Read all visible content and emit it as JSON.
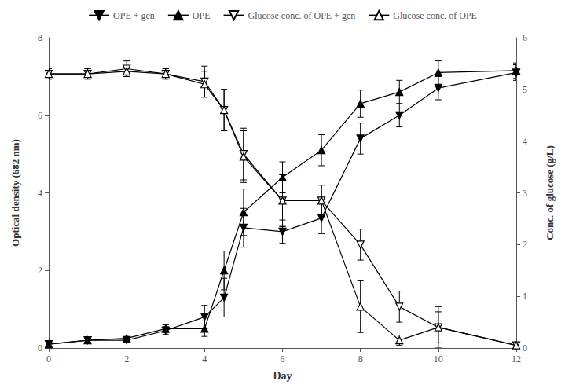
{
  "chart_data": {
    "type": "line",
    "xlabel": "Day",
    "ylabel": "Optical density (682 nm)",
    "y2label": "Conc. of glucose (g/L)",
    "x": [
      0,
      1,
      2,
      3,
      4,
      4.5,
      5,
      6,
      7,
      8,
      9,
      10,
      12
    ],
    "xlim": [
      0,
      12
    ],
    "xticks": [
      0,
      2,
      4,
      6,
      8,
      10,
      12
    ],
    "ylim": [
      0,
      8
    ],
    "yticks": [
      0,
      2,
      4,
      6,
      8
    ],
    "y2lim": [
      0,
      6
    ],
    "y2ticks": [
      0,
      1,
      2,
      3,
      4,
      5,
      6
    ],
    "grid": false,
    "legend": "top",
    "series": [
      {
        "name": "OPE + gen",
        "color": "#000000",
        "marker": "triangle-down",
        "values": [
          0.1,
          0.2,
          0.2,
          0.45,
          0.8,
          1.3,
          3.1,
          3.0,
          3.35,
          5.4,
          6.0,
          6.7,
          7.1
        ],
        "yerr": [
          0.05,
          0.05,
          0.05,
          0.1,
          0.3,
          0.5,
          0.5,
          0.3,
          0.4,
          0.4,
          0.3,
          0.3,
          0.2
        ]
      },
      {
        "name": "OPE",
        "color": "#000000",
        "marker": "triangle-up",
        "values": [
          0.1,
          0.2,
          0.25,
          0.5,
          0.5,
          2.0,
          3.5,
          4.4,
          5.1,
          6.3,
          6.6,
          7.1,
          7.15
        ],
        "yerr": [
          0.05,
          0.05,
          0.05,
          0.1,
          0.2,
          0.5,
          0.6,
          0.4,
          0.4,
          0.35,
          0.3,
          0.3,
          0.2
        ]
      },
      {
        "name": "Glucose conc. of OPE + gen",
        "color": "#000000",
        "marker": "open-triangle-down",
        "axis": "y2",
        "values": [
          5.3,
          5.3,
          5.4,
          5.3,
          5.15,
          4.6,
          3.75,
          2.85,
          2.85,
          2.0,
          0.8,
          0.4,
          0.05
        ],
        "yerr": [
          0.1,
          0.1,
          0.15,
          0.1,
          0.3,
          0.4,
          0.5,
          0.5,
          0.3,
          0.3,
          0.3,
          0.3,
          0.05
        ]
      },
      {
        "name": "Glucose conc. of OPE",
        "color": "#000000",
        "marker": "open-triangle-up",
        "axis": "y2",
        "values": [
          5.3,
          5.3,
          5.35,
          5.3,
          5.1,
          4.6,
          3.7,
          2.85,
          2.85,
          0.8,
          0.15,
          0.4,
          0.05
        ],
        "yerr": [
          0.1,
          0.1,
          0.1,
          0.1,
          0.25,
          0.4,
          0.5,
          0.5,
          0.3,
          0.5,
          0.1,
          0.4,
          0.05
        ]
      }
    ]
  }
}
